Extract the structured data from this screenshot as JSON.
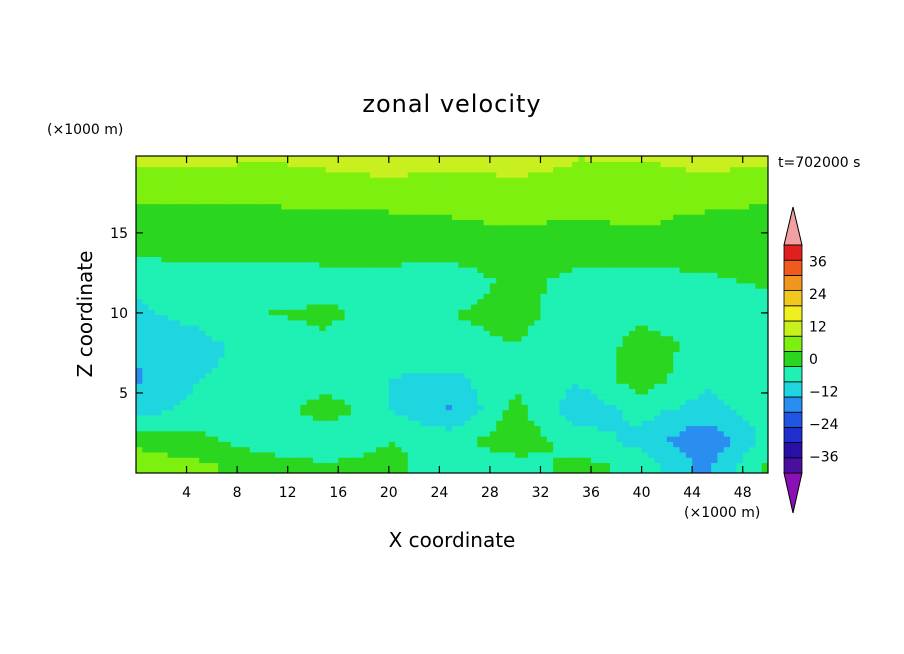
{
  "chart_data": {
    "type": "heatmap",
    "title": "zonal velocity",
    "time_label": "t=702000 s",
    "xlabel": "X coordinate",
    "ylabel": "Z coordinate",
    "x_unit": "(×1000 m)",
    "y_unit": "(×1000 m)",
    "xlim": [
      0,
      50
    ],
    "ylim": [
      0,
      19.8
    ],
    "x_ticks": [
      4,
      8,
      12,
      16,
      20,
      24,
      28,
      32,
      36,
      40,
      44,
      48
    ],
    "y_ticks": [
      5,
      10,
      15
    ],
    "colorbar": {
      "levels": [
        -42,
        -36,
        -30,
        -24,
        -18,
        -12,
        -6,
        0,
        6,
        12,
        18,
        24,
        30,
        36,
        42
      ],
      "labels": [
        36,
        24,
        12,
        0,
        -12,
        -24,
        -36
      ],
      "colors": [
        "#4b0f9e",
        "#2a0fa6",
        "#1f2fcc",
        "#1f55e0",
        "#2a8ef0",
        "#1fd6e0",
        "#1ff0b4",
        "#2ad61f",
        "#7df00f",
        "#c8f01f",
        "#f0f01f",
        "#f0c81f",
        "#f0961f",
        "#f05a1f",
        "#e0201f"
      ],
      "under_color": "#8a0fb4",
      "over_color": "#f0a0a0"
    },
    "grid_x": [
      0,
      5,
      10,
      15,
      20,
      25,
      30,
      35,
      40,
      45,
      50
    ],
    "grid_z": [
      0.5,
      2,
      4,
      6,
      8,
      10,
      12,
      14,
      16,
      18,
      19.5
    ],
    "values": [
      [
        9,
        7,
        3,
        1,
        2,
        -4,
        -3,
        2,
        -2,
        -14,
        2
      ],
      [
        5,
        2,
        -3,
        -6,
        0,
        -2,
        4,
        -3,
        -8,
        -18,
        -4
      ],
      [
        -9,
        -4,
        -5,
        4,
        -6,
        -13,
        2,
        -10,
        -4,
        -8,
        -3
      ],
      [
        -13,
        -6,
        -5,
        -4,
        -6,
        -7,
        -2,
        -5,
        4,
        -5,
        -3
      ],
      [
        -11,
        -8,
        -3,
        -1,
        -3,
        -2,
        0,
        -4,
        2,
        -1,
        -2
      ],
      [
        -7,
        -4,
        0,
        1,
        -2,
        0,
        2,
        -3,
        -1,
        -4,
        -4
      ],
      [
        -5,
        -3,
        -4,
        -2,
        -3,
        -4,
        2,
        -2,
        -3,
        -1,
        1
      ],
      [
        2,
        2,
        2,
        2,
        3,
        3,
        4,
        3,
        4,
        3,
        2
      ],
      [
        3,
        4,
        4,
        5,
        5,
        6,
        7,
        6,
        7,
        5,
        4
      ],
      [
        9,
        10,
        9,
        10,
        11,
        10,
        11,
        10,
        10,
        11,
        9
      ],
      [
        13,
        13,
        12,
        13,
        14,
        13,
        14,
        12,
        12,
        13,
        13
      ]
    ]
  }
}
